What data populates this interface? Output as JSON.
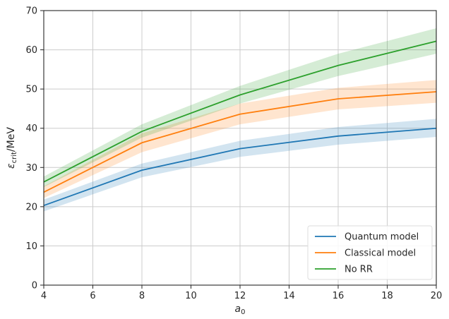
{
  "chart_data": {
    "type": "line",
    "title": "",
    "xlabel": "a",
    "xlabel_sub": "0",
    "ylabel": "ε",
    "ylabel_sub": "crit",
    "ylabel_unit": "/MeV",
    "xlim": [
      4,
      20
    ],
    "ylim": [
      0,
      70
    ],
    "x_ticks": [
      4,
      6,
      8,
      10,
      12,
      14,
      16,
      18,
      20
    ],
    "y_ticks": [
      0,
      10,
      20,
      30,
      40,
      50,
      60,
      70
    ],
    "grid": true,
    "legend_position": "bottom-right",
    "x": [
      4,
      8,
      12,
      16,
      20
    ],
    "series": [
      {
        "name": "Quantum model",
        "color": "#1f77b4",
        "values": [
          20.3,
          29.3,
          34.8,
          38.0,
          40.0
        ],
        "lower": [
          18.8,
          27.5,
          32.7,
          35.8,
          37.8
        ],
        "upper": [
          21.8,
          31.0,
          36.8,
          40.3,
          42.4
        ]
      },
      {
        "name": "Classical model",
        "color": "#ff7f0e",
        "values": [
          23.7,
          36.3,
          43.6,
          47.5,
          49.3
        ],
        "lower": [
          22.2,
          33.9,
          41.0,
          44.8,
          46.5
        ],
        "upper": [
          25.2,
          38.7,
          46.3,
          50.3,
          52.3
        ]
      },
      {
        "name": "No RR",
        "color": "#2ca02c",
        "values": [
          26.3,
          39.2,
          48.5,
          56.0,
          62.2
        ],
        "lower": [
          25.0,
          37.6,
          46.3,
          53.3,
          59.0
        ],
        "upper": [
          27.7,
          41.0,
          50.8,
          59.0,
          65.5
        ]
      }
    ]
  }
}
